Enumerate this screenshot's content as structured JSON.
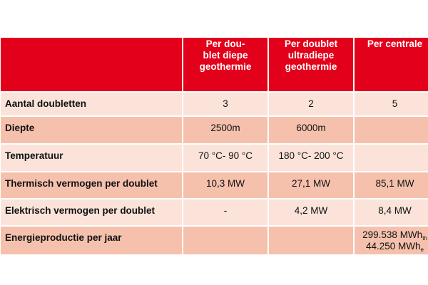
{
  "header": {
    "col0": "",
    "col1": "Per dou-\nblet diepe\ngeothermie",
    "col2": "Per doublet\nultradiepe\ngeothermie",
    "col3": "Per centrale"
  },
  "rows": [
    {
      "label": "Aantal doubletten",
      "c1": "3",
      "c2": "2",
      "c3": "5"
    },
    {
      "label": "Diepte",
      "c1": "2500m",
      "c2": "6000m",
      "c3": ""
    },
    {
      "label": "Temperatuur",
      "c1": "70 °C- 90 °C",
      "c2": "180 °C- 200 °C",
      "c3": ""
    },
    {
      "label": "Thermisch vermogen per doublet",
      "c1": "10,3 MW",
      "c2": "27,1 MW",
      "c3": "85,1 MW"
    },
    {
      "label": "Elektrisch vermogen per doublet",
      "c1": "-",
      "c2": "4,2 MW",
      "c3": "8,4 MW"
    },
    {
      "label": "Energieproductie per jaar",
      "c1": "",
      "c2": "",
      "c3_line1": "299.538 MWh",
      "c3_line1_sub": "th",
      "c3_line2": "44.250 MWh",
      "c3_line2_sub": "e"
    }
  ],
  "colors": {
    "header_red": "#e3001b",
    "row_light": "#fbe3da",
    "row_dark": "#f5c1ad"
  }
}
